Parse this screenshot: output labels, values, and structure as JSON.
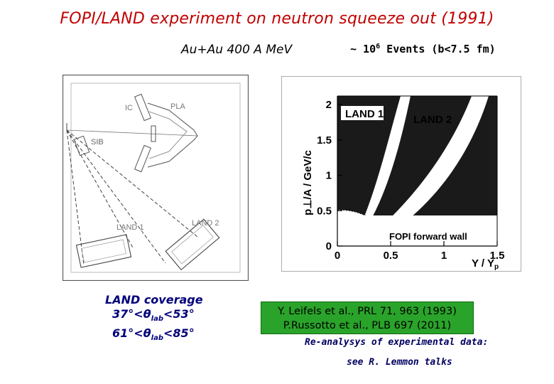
{
  "title": "FOPI/LAND experiment on neutron squeeze out (1991)",
  "reaction": "Au+Au 400 A MeV",
  "events": {
    "prefix": "~ 10",
    "exponent": "6",
    "suffix": " Events (b<7.5 fm)"
  },
  "detector": {
    "labels": {
      "ic": "IC",
      "pla": "PLA",
      "sib": "SIB",
      "land1": "LAND 1",
      "land2": "LAND 2"
    }
  },
  "plot": {
    "ylabel": "p⊥/A  /  GeV/c",
    "xlabel": "Y / Y",
    "xlabel_sub": "p",
    "yticks": [
      "0",
      "0.5",
      "1",
      "1.5",
      "2"
    ],
    "xticks": [
      "0",
      "0.5",
      "1",
      "1.5"
    ],
    "labels": {
      "land1": "LAND 1",
      "land2": "LAND 2",
      "fopi": "FOPI forward wall"
    }
  },
  "coverage": {
    "heading": "LAND coverage",
    "line1": {
      "a": "37°<θ",
      "sub": "lab",
      "b": "<53°"
    },
    "line2": {
      "a": "61°<θ",
      "sub": "lab",
      "b": "<85°"
    }
  },
  "references": {
    "ref1": "Y. Leifels et al., PRL 71, 963 (1993)",
    "ref2": "P.Russotto et al., PLB  697 (2011)"
  },
  "reanalysis": "Re-analysys of experimental data:",
  "talks": "see R. Lemmon talks",
  "colors": {
    "title": "#c00000",
    "coverage": "#00007a",
    "refbox": "#2aa32a",
    "note": "#000060"
  }
}
